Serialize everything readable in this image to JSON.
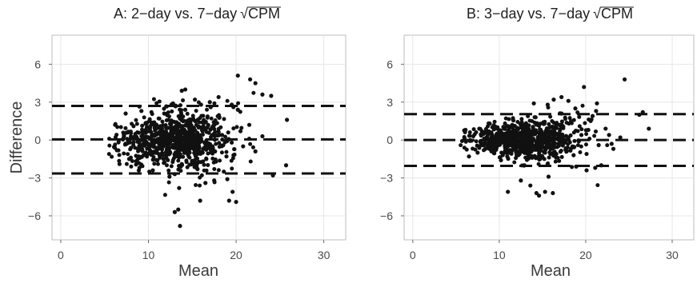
{
  "figure": {
    "shared_ylabel": "Difference"
  },
  "chart_data": [
    {
      "type": "scatter",
      "panel_title_prefix": "A: 2−day vs. 7−day",
      "panel_title_radicand": "CPM",
      "xlabel": "Mean",
      "xlim": [
        -1,
        32.5
      ],
      "ylim": [
        -7.9,
        8.3
      ],
      "xticks": [
        0,
        10,
        20,
        30
      ],
      "yticks": [
        -6,
        -3,
        0,
        3,
        6
      ],
      "xtick_labels": [
        "0",
        "10",
        "20",
        "30"
      ],
      "ytick_labels": [
        "−6",
        "−3",
        "0",
        "3",
        "6"
      ],
      "grid": true,
      "reference_lines": [
        2.7,
        0.05,
        -2.65
      ],
      "series": [
        {
          "points": [
            [
              6.2,
              1.2
            ],
            [
              6.7,
              -1.9
            ],
            [
              7.2,
              0.4
            ],
            [
              7.8,
              -1.5
            ],
            [
              8.3,
              1.1
            ],
            [
              8.8,
              -0.7
            ],
            [
              9.2,
              2.3
            ],
            [
              9.7,
              -1.0
            ],
            [
              10.1,
              1.5
            ],
            [
              10.5,
              -2.4
            ],
            [
              10.9,
              0.9
            ],
            [
              11.3,
              -1.4
            ],
            [
              11.8,
              2.1
            ],
            [
              12.2,
              -0.6
            ],
            [
              12.6,
              1.4
            ],
            [
              13.0,
              -2.7
            ],
            [
              13.4,
              0.5
            ],
            [
              13.8,
              -1.9
            ],
            [
              14.2,
              2.4
            ],
            [
              14.7,
              -1.0
            ],
            [
              15.1,
              1.7
            ],
            [
              15.6,
              -2.3
            ],
            [
              16.1,
              0.8
            ],
            [
              16.6,
              -1.5
            ],
            [
              17.1,
              2.6
            ],
            [
              17.6,
              -0.9
            ],
            [
              18.1,
              1.8
            ],
            [
              18.6,
              -2.5
            ],
            [
              19.1,
              0.6
            ],
            [
              19.7,
              -1.2
            ],
            [
              20.2,
              2.4
            ],
            [
              20.8,
              -0.5
            ],
            [
              21.5,
              1.2
            ],
            [
              22.2,
              -0.9
            ],
            [
              23.0,
              0.3
            ],
            [
              7.4,
              2.1
            ],
            [
              8.9,
              -2.4
            ],
            [
              9.6,
              0.1
            ],
            [
              10.7,
              -0.2
            ],
            [
              11.6,
              0.3
            ],
            [
              12.8,
              -0.4
            ],
            [
              13.6,
              0.2
            ],
            [
              14.9,
              -0.3
            ],
            [
              16.0,
              0.1
            ],
            [
              17.3,
              -0.5
            ],
            [
              18.4,
              0.4
            ],
            [
              19.5,
              -0.2
            ],
            [
              20.5,
              0.7
            ],
            [
              11.2,
              1.0
            ],
            [
              12.4,
              -1.1
            ],
            [
              13.9,
              1.1
            ],
            [
              15.4,
              -1.3
            ],
            [
              16.8,
              1.2
            ],
            [
              18.9,
              -1.3
            ],
            [
              14.4,
              0.6
            ]
          ]
        }
      ],
      "highlight_points": [
        [
          12.4,
          -2.9
        ],
        [
          12.8,
          2.9
        ],
        [
          13.5,
          -3.8
        ],
        [
          13.8,
          3.9
        ],
        [
          14.2,
          4.0
        ],
        [
          15.3,
          3.2
        ],
        [
          16.0,
          2.8
        ],
        [
          16.5,
          -3.4
        ],
        [
          17.0,
          3.0
        ],
        [
          17.5,
          -3.2
        ],
        [
          18.0,
          3.4
        ],
        [
          19.0,
          -3.1
        ],
        [
          19.5,
          2.8
        ],
        [
          20.2,
          5.1
        ],
        [
          21.6,
          4.8
        ],
        [
          22.2,
          4.5
        ],
        [
          23.0,
          3.6
        ],
        [
          24.0,
          3.5
        ],
        [
          24.2,
          -2.8
        ],
        [
          25.7,
          -2.0
        ],
        [
          25.8,
          1.6
        ],
        [
          13.0,
          -5.7
        ],
        [
          13.4,
          -5.5
        ],
        [
          13.6,
          -6.8
        ],
        [
          15.9,
          -4.8
        ],
        [
          19.2,
          -4.8
        ],
        [
          19.6,
          -4.1
        ],
        [
          20.0,
          -4.9
        ]
      ]
    },
    {
      "type": "scatter",
      "panel_title_prefix": "B: 3−day vs. 7−day",
      "panel_title_radicand": "CPM",
      "xlabel": "Mean",
      "xlim": [
        -1,
        32.5
      ],
      "ylim": [
        -7.9,
        8.3
      ],
      "xticks": [
        0,
        10,
        20,
        30
      ],
      "yticks": [
        -6,
        -3,
        0,
        3,
        6
      ],
      "xtick_labels": [
        "0",
        "10",
        "20",
        "30"
      ],
      "ytick_labels": [
        "−6",
        "−3",
        "0",
        "3",
        "6"
      ],
      "grid": true,
      "reference_lines": [
        2.05,
        0.0,
        -2.05
      ],
      "series": [
        {
          "points": [
            [
              6.1,
              0.8
            ],
            [
              6.5,
              -1.3
            ],
            [
              7.0,
              0.3
            ],
            [
              7.5,
              -1.0
            ],
            [
              8.0,
              0.7
            ],
            [
              8.4,
              -0.7
            ],
            [
              8.9,
              1.3
            ],
            [
              9.3,
              -0.6
            ],
            [
              9.8,
              1.0
            ],
            [
              10.2,
              -1.6
            ],
            [
              10.7,
              0.5
            ],
            [
              11.1,
              -1.0
            ],
            [
              11.6,
              1.6
            ],
            [
              12.0,
              -0.4
            ],
            [
              12.5,
              1.0
            ],
            [
              12.9,
              -2.0
            ],
            [
              13.3,
              0.4
            ],
            [
              13.8,
              -1.4
            ],
            [
              14.2,
              1.8
            ],
            [
              14.7,
              -0.8
            ],
            [
              15.1,
              1.4
            ],
            [
              15.6,
              -1.9
            ],
            [
              16.1,
              0.6
            ],
            [
              16.6,
              -1.1
            ],
            [
              17.2,
              2.1
            ],
            [
              17.7,
              -0.7
            ],
            [
              18.3,
              1.5
            ],
            [
              18.9,
              -2.1
            ],
            [
              19.5,
              0.4
            ],
            [
              20.1,
              -1.1
            ],
            [
              20.8,
              1.9
            ],
            [
              21.5,
              -0.4
            ],
            [
              22.3,
              0.9
            ],
            [
              23.2,
              -0.7
            ],
            [
              24.0,
              0.2
            ],
            [
              9.0,
              0.1
            ],
            [
              10.4,
              -0.2
            ],
            [
              11.4,
              0.2
            ],
            [
              12.7,
              -0.3
            ],
            [
              13.6,
              0.1
            ],
            [
              14.5,
              -0.2
            ],
            [
              15.8,
              0.3
            ],
            [
              16.9,
              -0.4
            ],
            [
              18.0,
              0.2
            ],
            [
              19.2,
              -0.1
            ],
            [
              10.9,
              1.1
            ],
            [
              12.2,
              -1.2
            ],
            [
              13.9,
              1.0
            ],
            [
              15.3,
              -1.0
            ],
            [
              17.0,
              1.2
            ],
            [
              18.6,
              -1.2
            ],
            [
              20.3,
              0.8
            ],
            [
              11.8,
              0.7
            ]
          ]
        }
      ],
      "highlight_points": [
        [
          11.0,
          -4.1
        ],
        [
          12.5,
          -3.2
        ],
        [
          13.6,
          -3.6
        ],
        [
          14.3,
          -4.2
        ],
        [
          14.6,
          -4.4
        ],
        [
          15.3,
          -4.1
        ],
        [
          15.7,
          -2.9
        ],
        [
          16.2,
          -4.2
        ],
        [
          14.0,
          2.9
        ],
        [
          15.6,
          2.8
        ],
        [
          16.3,
          3.2
        ],
        [
          17.2,
          3.4
        ],
        [
          18.0,
          3.1
        ],
        [
          18.8,
          2.5
        ],
        [
          19.8,
          4.2
        ],
        [
          21.3,
          2.9
        ],
        [
          21.1,
          -2.2
        ],
        [
          21.8,
          -2.0
        ],
        [
          22.7,
          0.4
        ],
        [
          23.0,
          -0.3
        ],
        [
          24.5,
          4.8
        ],
        [
          26.2,
          2.0
        ],
        [
          26.6,
          2.2
        ],
        [
          27.3,
          0.9
        ],
        [
          20.1,
          -2.4
        ],
        [
          21.2,
          2.3
        ]
      ]
    }
  ]
}
